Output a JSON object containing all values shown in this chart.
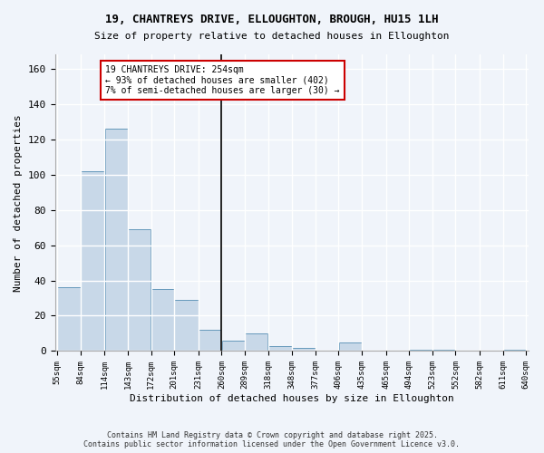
{
  "title": "19, CHANTREYS DRIVE, ELLOUGHTON, BROUGH, HU15 1LH",
  "subtitle": "Size of property relative to detached houses in Elloughton",
  "xlabel": "Distribution of detached houses by size in Elloughton",
  "ylabel": "Number of detached properties",
  "bar_color": "#c8d8e8",
  "bar_edge_color": "#6699bb",
  "background_color": "#f0f4fa",
  "grid_color": "#ffffff",
  "bins": [
    55,
    84,
    114,
    143,
    172,
    201,
    231,
    260,
    289,
    318,
    348,
    377,
    406,
    435,
    465,
    494,
    523,
    552,
    582,
    611,
    640
  ],
  "values": [
    36,
    102,
    126,
    69,
    35,
    29,
    12,
    6,
    10,
    3,
    2,
    0,
    5,
    0,
    0,
    1,
    1,
    0,
    0,
    1
  ],
  "annotation_text": "19 CHANTREYS DRIVE: 254sqm\n← 93% of detached houses are smaller (402)\n7% of semi-detached houses are larger (30) →",
  "annotation_box_color": "#ffffff",
  "annotation_box_edge_color": "#cc0000",
  "footer_text": "Contains HM Land Registry data © Crown copyright and database right 2025.\nContains public sector information licensed under the Open Government Licence v3.0.",
  "ylim": [
    0,
    168
  ],
  "yticks": [
    0,
    20,
    40,
    60,
    80,
    100,
    120,
    140,
    160
  ],
  "property_line_x": 260
}
